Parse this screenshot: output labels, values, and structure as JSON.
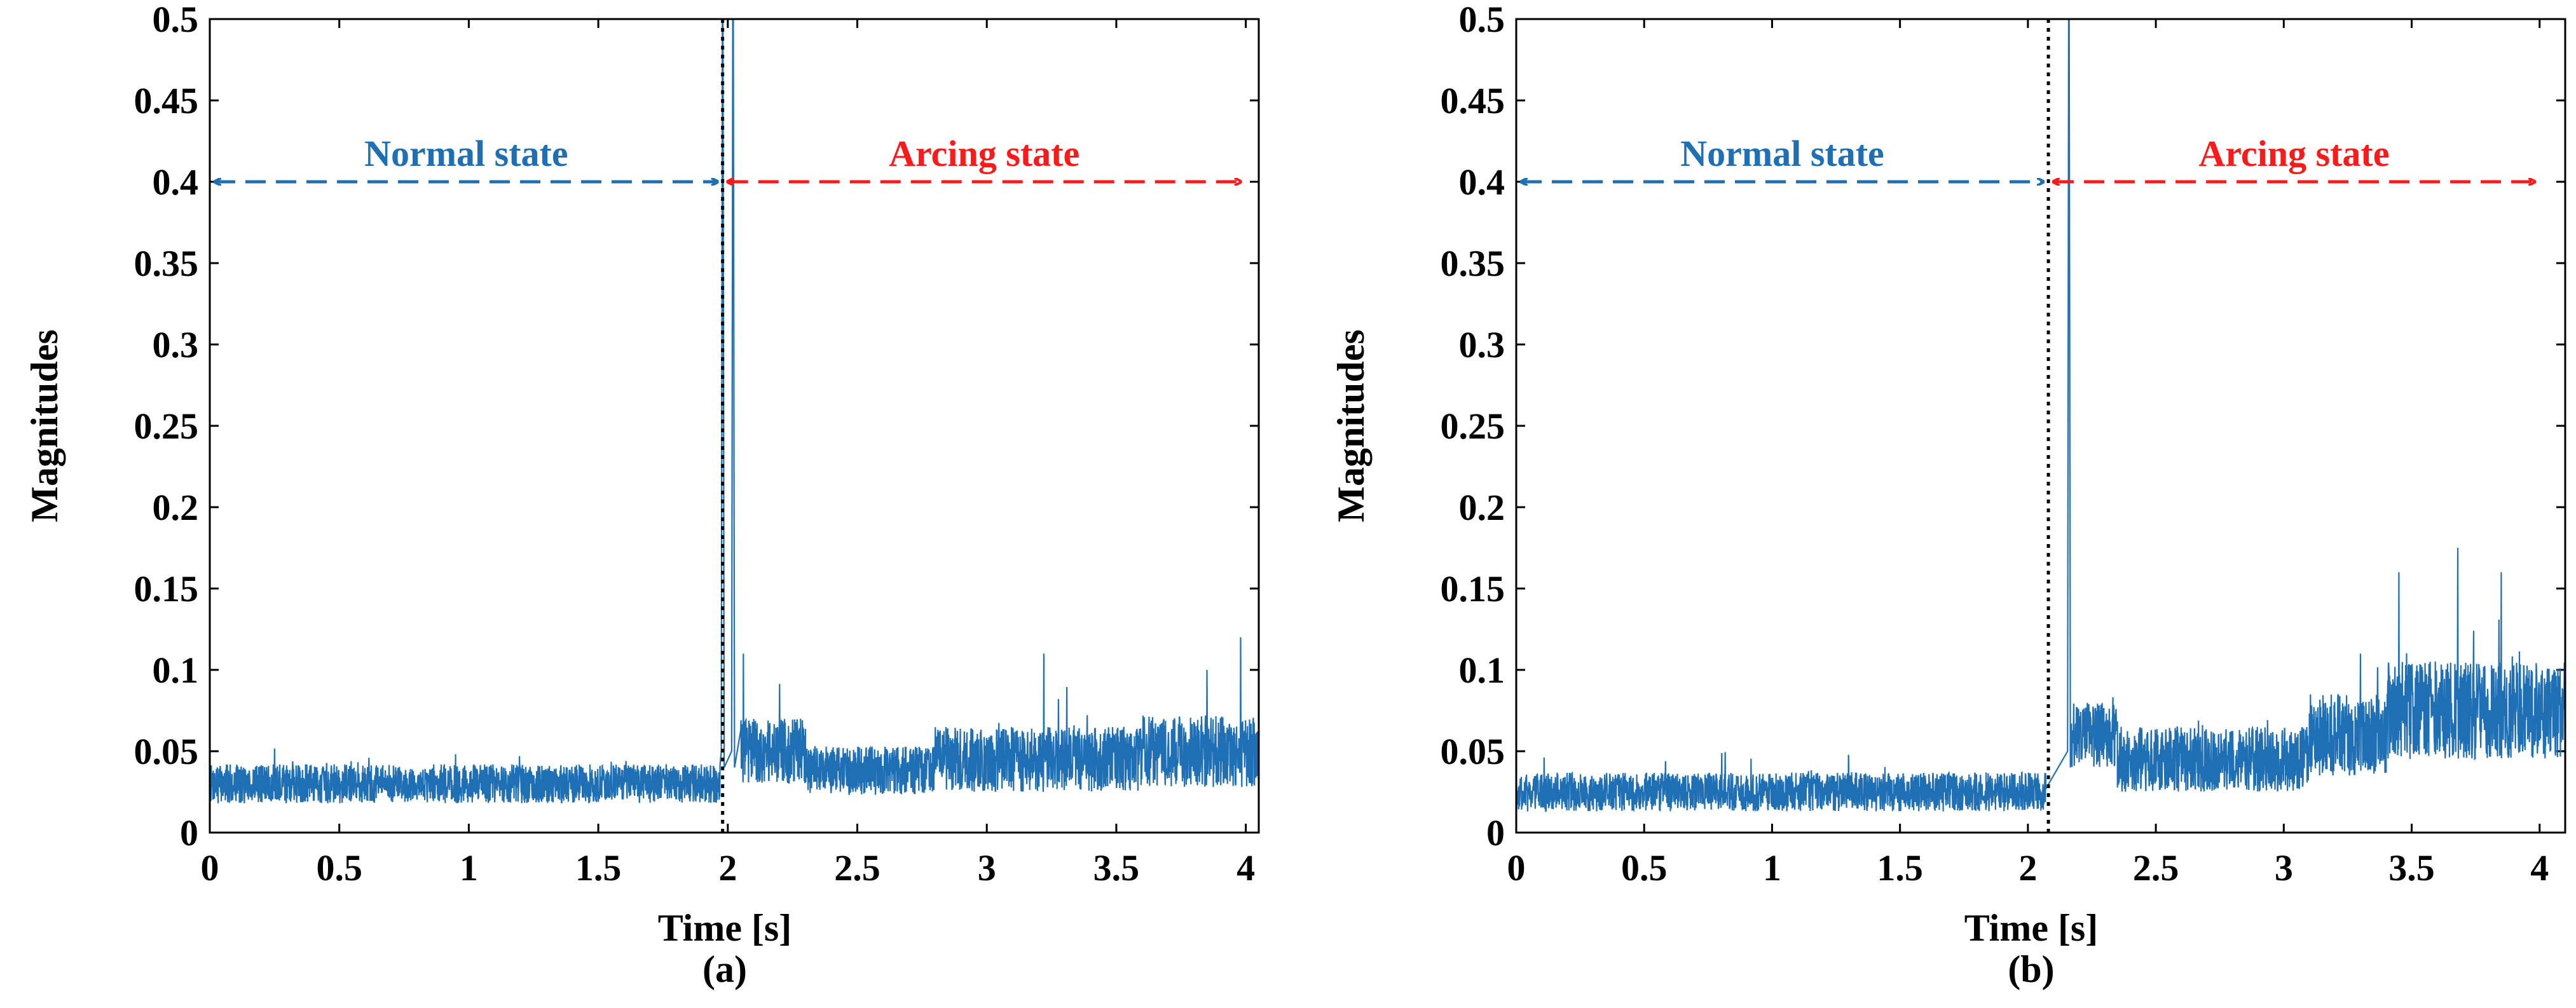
{
  "chart_data": [
    {
      "type": "line",
      "panel_label": "(a)",
      "xlabel": "Time [s]",
      "ylabel": "Magnitudes",
      "xlim": [
        0,
        4.05
      ],
      "ylim": [
        0,
        0.5
      ],
      "x_ticks": [
        "0",
        "0.5",
        "1",
        "1.5",
        "2",
        "2.5",
        "3",
        "3.5",
        "4"
      ],
      "y_ticks": [
        "0",
        "0.05",
        "0.1",
        "0.15",
        "0.2",
        "0.25",
        "0.3",
        "0.35",
        "0.4",
        "0.45",
        "0.5"
      ],
      "series_color": "#1f6fb4",
      "event_time": 1.98,
      "spike_times": [
        1.98,
        2.02
      ],
      "annotations": [
        {
          "text": "Normal state",
          "color": "#1f6fb4",
          "from": 0.0,
          "to": 1.98,
          "y": 0.4
        },
        {
          "text": "Arcing state",
          "color": "#ff1a1a",
          "from": 1.98,
          "to": 4.0,
          "y": 0.4
        }
      ],
      "segments": [
        {
          "x": [
            0.0,
            1.97
          ],
          "base": 0.03,
          "noise": 0.012
        },
        {
          "x": [
            2.05,
            2.3
          ],
          "base": 0.05,
          "noise": 0.02
        },
        {
          "x": [
            2.3,
            2.8
          ],
          "base": 0.038,
          "noise": 0.015
        },
        {
          "x": [
            2.8,
            3.6
          ],
          "base": 0.045,
          "noise": 0.02
        },
        {
          "x": [
            3.6,
            4.05
          ],
          "base": 0.05,
          "noise": 0.022
        }
      ],
      "peaks": [
        {
          "x": 2.06,
          "y": 0.11
        },
        {
          "x": 3.22,
          "y": 0.11
        },
        {
          "x": 3.98,
          "y": 0.12
        },
        {
          "x": 3.85,
          "y": 0.1
        }
      ]
    },
    {
      "type": "line",
      "panel_label": "(b)",
      "xlabel": "Time [s]",
      "ylabel": "Magnitudes",
      "xlim": [
        0,
        4.1
      ],
      "ylim": [
        0,
        0.5
      ],
      "x_ticks": [
        "0",
        "0.5",
        "1",
        "1.5",
        "2",
        "2.5",
        "3",
        "3.5",
        "4"
      ],
      "y_ticks": [
        "0",
        "0.05",
        "0.1",
        "0.15",
        "0.2",
        "0.25",
        "0.3",
        "0.35",
        "0.4",
        "0.45",
        "0.5"
      ],
      "series_color": "#1f6fb4",
      "event_time": 2.08,
      "spike_times": [
        2.16
      ],
      "annotations": [
        {
          "text": "Normal state",
          "color": "#1f6fb4",
          "from": 0.0,
          "to": 2.08,
          "y": 0.4
        },
        {
          "text": "Arcing state",
          "color": "#ff1a1a",
          "from": 2.08,
          "to": 4.0,
          "y": 0.4
        }
      ],
      "segments": [
        {
          "x": [
            0.0,
            2.07
          ],
          "base": 0.025,
          "noise": 0.012
        },
        {
          "x": [
            2.17,
            2.35
          ],
          "base": 0.06,
          "noise": 0.02
        },
        {
          "x": [
            2.35,
            3.1
          ],
          "base": 0.045,
          "noise": 0.02
        },
        {
          "x": [
            3.1,
            3.4
          ],
          "base": 0.06,
          "noise": 0.025
        },
        {
          "x": [
            3.4,
            4.1
          ],
          "base": 0.075,
          "noise": 0.03
        }
      ],
      "peaks": [
        {
          "x": 3.45,
          "y": 0.16
        },
        {
          "x": 3.68,
          "y": 0.175
        },
        {
          "x": 3.85,
          "y": 0.16
        },
        {
          "x": 3.3,
          "y": 0.11
        }
      ]
    }
  ]
}
